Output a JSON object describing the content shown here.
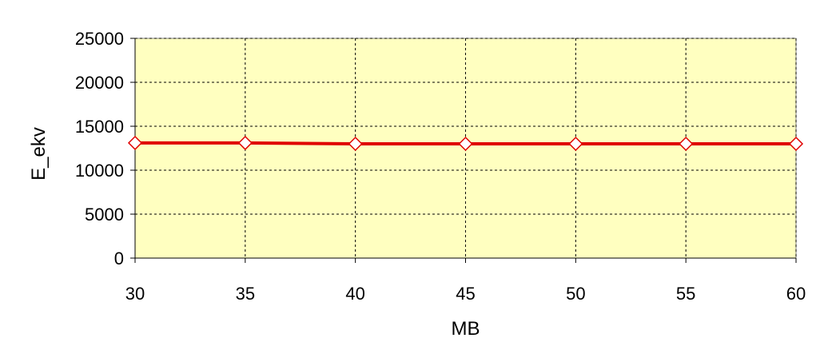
{
  "chart_data": {
    "type": "line",
    "title": "",
    "xlabel": "MB",
    "ylabel": "E_ekv",
    "x": [
      30,
      35,
      40,
      45,
      50,
      55,
      60
    ],
    "xlim": [
      30,
      60
    ],
    "ylim": [
      0,
      25000
    ],
    "x_ticks": [
      "30",
      "35",
      "40",
      "45",
      "50",
      "55",
      "60"
    ],
    "y_ticks": [
      "0",
      "5000",
      "10000",
      "15000",
      "20000",
      "25000"
    ],
    "series": [
      {
        "values": [
          13100,
          13100,
          13000,
          13000,
          13000,
          13000,
          13000
        ],
        "marker": "diamond"
      }
    ],
    "grid": true,
    "legend": "none",
    "colors": {
      "plot_background": "#FFFFC0",
      "line": "#E00000",
      "marker_fill": "#FFFFFF",
      "grid": "#000000"
    }
  }
}
